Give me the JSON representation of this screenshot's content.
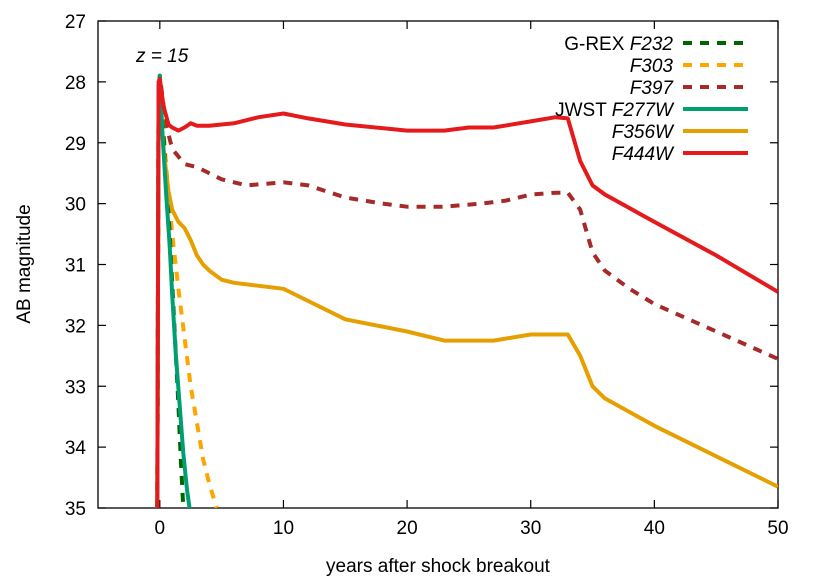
{
  "chart_data": {
    "type": "line",
    "annotation": "z = 15",
    "xlabel": "years after shock breakout",
    "ylabel": "AB magnitude",
    "xlim": [
      -5,
      50
    ],
    "ylim": [
      35,
      27
    ],
    "y_inverted": true,
    "xticks": [
      0,
      10,
      20,
      30,
      40,
      50
    ],
    "yticks": [
      27,
      28,
      29,
      30,
      31,
      32,
      33,
      34,
      35
    ],
    "grid": false,
    "legend_position": "top-right",
    "legend_groups": [
      {
        "prefix": "G-REX",
        "series_names": [
          "F232",
          "F303",
          "F397"
        ]
      },
      {
        "prefix": "JWST",
        "series_names": [
          "F277W",
          "F356W",
          "F444W"
        ]
      }
    ],
    "series": [
      {
        "name": "F232",
        "color": "#006400",
        "dash": "dashed",
        "x": [
          -0.2,
          -0.1,
          0,
          0.2,
          0.5,
          0.8,
          1.0,
          1.3,
          1.5,
          1.7,
          1.9
        ],
        "y": [
          35,
          28.1,
          27.9,
          28.6,
          29.5,
          30.5,
          31.3,
          32.5,
          33.3,
          34.2,
          35
        ]
      },
      {
        "name": "F303",
        "color": "#FFA500",
        "dash": "dashed",
        "x": [
          -0.2,
          -0.1,
          0,
          0.3,
          0.6,
          1.0,
          1.5,
          2.0,
          2.5,
          3.0,
          3.5,
          4.0,
          4.6
        ],
        "y": [
          35,
          28.1,
          27.9,
          28.8,
          29.6,
          30.5,
          31.4,
          32.2,
          33.0,
          33.6,
          34.2,
          34.6,
          35
        ]
      },
      {
        "name": "F397",
        "color": "#A52A2A",
        "dash": "dashed",
        "x": [
          -0.2,
          -0.1,
          0,
          0.5,
          1.0,
          2.0,
          3.0,
          5,
          7,
          10,
          12,
          15,
          18,
          20,
          23,
          26,
          28,
          30,
          32,
          33,
          34,
          35,
          36,
          38,
          40,
          45,
          50
        ],
        "y": [
          35,
          28.1,
          27.9,
          28.7,
          29.1,
          29.35,
          29.4,
          29.6,
          29.7,
          29.65,
          29.7,
          29.9,
          30.0,
          30.05,
          30.05,
          30.0,
          29.95,
          29.85,
          29.82,
          29.82,
          30.1,
          30.8,
          31.1,
          31.4,
          31.65,
          32.1,
          32.55
        ]
      },
      {
        "name": "F277W",
        "color": "#009E73",
        "dash": "solid",
        "x": [
          -0.2,
          -0.1,
          0,
          0.2,
          0.5,
          0.8,
          1.0,
          1.3,
          1.6,
          1.9,
          2.2,
          2.4
        ],
        "y": [
          35,
          28.1,
          27.9,
          28.8,
          29.8,
          30.7,
          31.5,
          32.5,
          33.3,
          34.1,
          34.7,
          35
        ]
      },
      {
        "name": "F356W",
        "color": "#E69F00",
        "dash": "solid",
        "x": [
          -0.2,
          -0.1,
          0,
          0.3,
          0.7,
          1.0,
          1.5,
          2.0,
          2.5,
          3.0,
          3.5,
          4,
          5,
          6,
          8,
          10,
          12,
          15,
          20,
          23,
          25,
          27,
          30,
          32,
          33,
          34,
          35,
          36,
          40,
          45,
          50
        ],
        "y": [
          35,
          28.1,
          28.3,
          29.1,
          29.8,
          30.1,
          30.3,
          30.4,
          30.6,
          30.85,
          31.0,
          31.1,
          31.25,
          31.3,
          31.35,
          31.4,
          31.6,
          31.9,
          32.1,
          32.25,
          32.25,
          32.25,
          32.15,
          32.15,
          32.15,
          32.5,
          33.0,
          33.2,
          33.65,
          34.15,
          34.65
        ]
      },
      {
        "name": "F444W",
        "color": "#E41A1C",
        "dash": "solid",
        "x": [
          -0.2,
          -0.1,
          0,
          0.3,
          0.7,
          1.0,
          1.5,
          2.0,
          2.5,
          3.0,
          4,
          6,
          8,
          10,
          12,
          15,
          20,
          23,
          25,
          27,
          30,
          32,
          33,
          34,
          35,
          36,
          40,
          45,
          50
        ],
        "y": [
          35,
          28.0,
          27.95,
          28.4,
          28.7,
          28.75,
          28.8,
          28.75,
          28.68,
          28.72,
          28.72,
          28.68,
          28.58,
          28.52,
          28.6,
          28.7,
          28.8,
          28.8,
          28.75,
          28.75,
          28.65,
          28.58,
          28.6,
          29.3,
          29.7,
          29.85,
          30.3,
          30.85,
          31.45
        ]
      }
    ]
  }
}
